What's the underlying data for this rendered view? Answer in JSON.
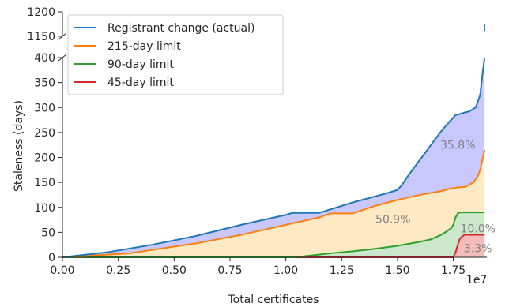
{
  "chart_data": {
    "type": "area",
    "xlabel": "Total certificates",
    "ylabel": "Staleness (days)",
    "x_scale_label": "1e7",
    "xlim": [
      0.0,
      1.9
    ],
    "x_ticks": [
      "0.00",
      "0.25",
      "0.50",
      "0.75",
      "1.00",
      "1.25",
      "1.50",
      "1.75"
    ],
    "y_axis_broken": true,
    "ylim_lower": [
      0,
      400
    ],
    "ylim_upper": [
      1150,
      1200
    ],
    "y_ticks_lower": [
      "0",
      "50",
      "100",
      "150",
      "200",
      "250",
      "300",
      "350",
      "400"
    ],
    "y_ticks_upper": [
      "1150",
      "1200"
    ],
    "legend_position": "top-left",
    "series": [
      {
        "name": "Registrant change (actual)",
        "color": "#1f77b4",
        "fill": "#c8c8ff",
        "x": [
          0.0,
          0.2,
          0.4,
          0.6,
          0.8,
          1.0,
          1.03,
          1.15,
          1.3,
          1.45,
          1.5,
          1.52,
          1.55,
          1.6,
          1.65,
          1.7,
          1.72,
          1.74,
          1.76,
          1.78,
          1.8,
          1.82,
          1.85,
          1.87,
          1.88,
          1.89
        ],
        "values": [
          0,
          10,
          25,
          43,
          65,
          85,
          89,
          89,
          110,
          128,
          135,
          145,
          165,
          195,
          225,
          255,
          265,
          275,
          285,
          287,
          290,
          292,
          300,
          325,
          365,
          400
        ],
        "outlier_value": 1168
      },
      {
        "name": "215-day limit",
        "color": "#ff7f0e",
        "fill": "#fde9c4",
        "x": [
          0.0,
          0.3,
          0.6,
          0.8,
          1.0,
          1.15,
          1.2,
          1.3,
          1.4,
          1.5,
          1.6,
          1.7,
          1.74,
          1.77,
          1.8,
          1.82,
          1.84,
          1.86,
          1.87,
          1.88,
          1.89
        ],
        "values": [
          0,
          8,
          28,
          45,
          65,
          80,
          88,
          88,
          103,
          115,
          125,
          133,
          138,
          140,
          141,
          145,
          150,
          163,
          175,
          195,
          215
        ]
      },
      {
        "name": "90-day limit",
        "color": "#2ca02c",
        "fill": "#cce8cc",
        "x": [
          0.0,
          1.04,
          1.1,
          1.2,
          1.3,
          1.4,
          1.5,
          1.6,
          1.65,
          1.7,
          1.72,
          1.74,
          1.75,
          1.76,
          1.77,
          1.78,
          1.89
        ],
        "values": [
          0,
          0,
          3,
          8,
          12,
          17,
          23,
          31,
          36,
          46,
          52,
          58,
          65,
          80,
          88,
          90,
          90
        ]
      },
      {
        "name": "45-day limit",
        "color": "#d62728",
        "fill": "#f5bcbc",
        "x": [
          0.0,
          1.75,
          1.76,
          1.77,
          1.78,
          1.79,
          1.8,
          1.89
        ],
        "values": [
          0,
          0,
          10,
          25,
          38,
          42,
          45,
          45
        ]
      }
    ],
    "annotations": [
      {
        "text": "35.8%",
        "x": 1.77,
        "y": 225
      },
      {
        "text": "50.9%",
        "x": 1.48,
        "y": 77
      },
      {
        "text": "10.0%",
        "x": 1.86,
        "y": 58
      },
      {
        "text": "3.3%",
        "x": 1.86,
        "y": 18
      }
    ]
  }
}
